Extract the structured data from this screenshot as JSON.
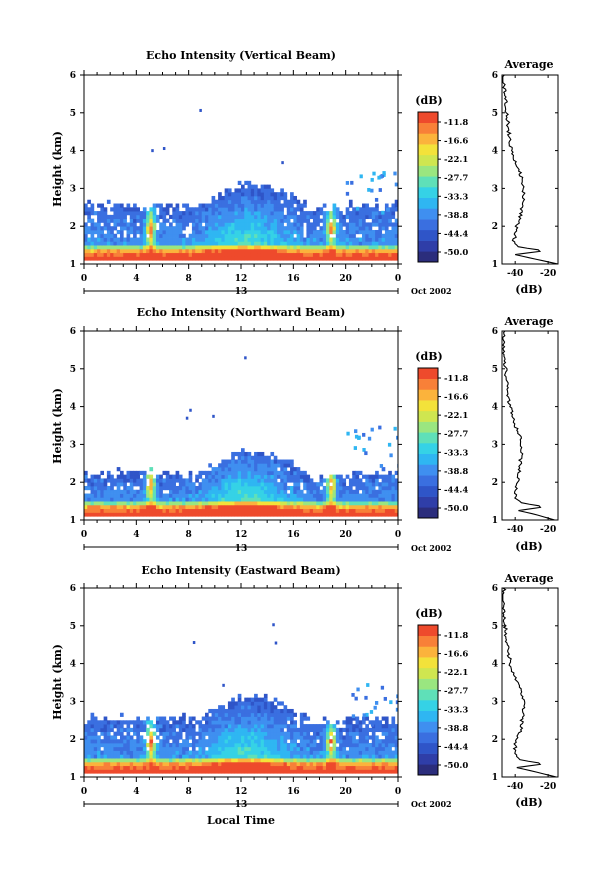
{
  "colors": {
    "scale": [
      "#2b2d7c",
      "#2f3ea8",
      "#2f55c8",
      "#3a6fe0",
      "#3f8ff0",
      "#2fb6f2",
      "#35d2e6",
      "#5fe0b8",
      "#9ae680",
      "#cfe650",
      "#f3e23a",
      "#fbb33c",
      "#f88038",
      "#ee4a2c"
    ]
  },
  "footer": {
    "xlabel": "Local Time"
  },
  "chart_data": [
    {
      "type": "heatmap",
      "title": "Echo Intensity (Vertical Beam)",
      "ylabel": "Height (km)",
      "ylim": [
        1,
        6
      ],
      "xlim": [
        0,
        24
      ],
      "xticks": [
        "0",
        "4",
        "8",
        "12",
        "16",
        "20",
        "0"
      ],
      "date_label": "13",
      "date_note": "Oct 2002",
      "colorbar_label": "(dB)",
      "colorbar_ticks": [
        "-11.8",
        "-16.6",
        "-22.1",
        "-27.7",
        "-33.3",
        "-38.8",
        "-44.4",
        "-50.0"
      ],
      "profile": {
        "title": "Average",
        "xlabel": "(dB)",
        "xticks": [
          "-40",
          "-20"
        ],
        "xlim": [
          -48,
          -14
        ],
        "ylim": [
          1,
          6
        ],
        "heights": [
          1.0,
          1.15,
          1.25,
          1.35,
          1.45,
          1.6,
          1.8,
          2.0,
          2.2,
          2.5,
          2.8,
          3.0,
          3.3,
          3.6,
          4.0,
          4.5,
          5.0,
          5.5,
          6.0
        ],
        "values": [
          -14,
          -30,
          -40,
          -22,
          -38,
          -41,
          -40,
          -39,
          -37,
          -36,
          -35,
          -35,
          -36,
          -39,
          -42,
          -44,
          -45,
          -46,
          -47
        ]
      }
    },
    {
      "type": "heatmap",
      "title": "Echo Intensity (Northward Beam)",
      "ylabel": "Height (km)",
      "ylim": [
        1,
        6
      ],
      "xlim": [
        0,
        24
      ],
      "xticks": [
        "0",
        "4",
        "8",
        "12",
        "16",
        "20",
        "0"
      ],
      "date_label": "13",
      "date_note": "Oct 2002",
      "colorbar_label": "(dB)",
      "colorbar_ticks": [
        "-11.8",
        "-16.6",
        "-22.1",
        "-27.7",
        "-33.3",
        "-38.8",
        "-44.4",
        "-50.0"
      ],
      "profile": {
        "title": "Average",
        "xlabel": "(dB)",
        "xticks": [
          "-40",
          "-20"
        ],
        "xlim": [
          -48,
          -14
        ],
        "ylim": [
          1,
          6
        ],
        "heights": [
          1.0,
          1.15,
          1.25,
          1.35,
          1.45,
          1.6,
          1.8,
          2.0,
          2.2,
          2.5,
          2.8,
          3.0,
          3.3,
          3.6,
          4.0,
          4.5,
          5.0,
          5.5,
          6.0
        ],
        "values": [
          -16,
          -28,
          -38,
          -22,
          -36,
          -40,
          -40,
          -39,
          -38,
          -37,
          -36,
          -36,
          -38,
          -41,
          -43,
          -45,
          -46,
          -47,
          -47
        ]
      }
    },
    {
      "type": "heatmap",
      "title": "Echo Intensity (Eastward Beam)",
      "ylabel": "Height (km)",
      "ylim": [
        1,
        6
      ],
      "xlim": [
        0,
        24
      ],
      "xticks": [
        "0",
        "4",
        "8",
        "12",
        "16",
        "20",
        "0"
      ],
      "date_label": "13",
      "date_note": "Oct 2002",
      "colorbar_label": "(dB)",
      "colorbar_ticks": [
        "-11.8",
        "-16.6",
        "-22.1",
        "-27.7",
        "-33.3",
        "-38.8",
        "-44.4",
        "-50.0"
      ],
      "profile": {
        "title": "Average",
        "xlabel": "(dB)",
        "xticks": [
          "-40",
          "-20"
        ],
        "xlim": [
          -48,
          -14
        ],
        "ylim": [
          1,
          6
        ],
        "heights": [
          1.0,
          1.15,
          1.25,
          1.35,
          1.45,
          1.6,
          1.8,
          2.0,
          2.2,
          2.5,
          2.8,
          3.0,
          3.3,
          3.6,
          4.0,
          4.5,
          5.0,
          5.5,
          6.0
        ],
        "values": [
          -15,
          -29,
          -39,
          -22,
          -37,
          -40,
          -40,
          -39,
          -37,
          -36,
          -35,
          -35,
          -37,
          -40,
          -43,
          -45,
          -46,
          -47,
          -47
        ]
      }
    }
  ]
}
